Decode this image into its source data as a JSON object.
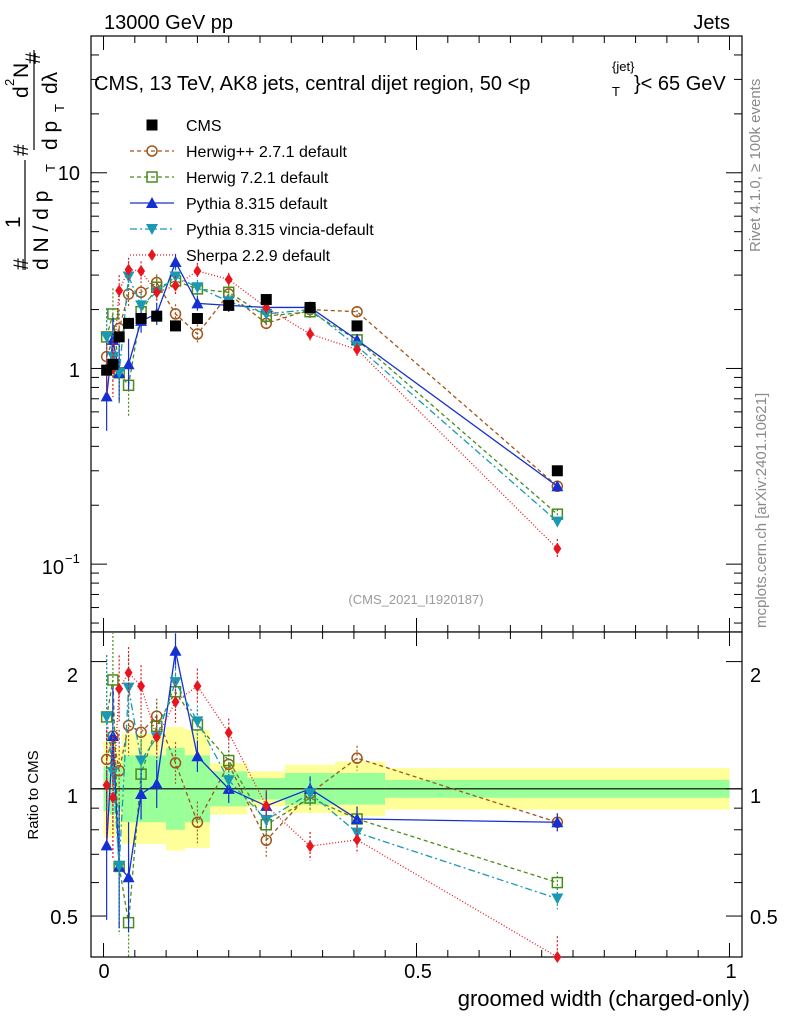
{
  "header": {
    "left": "13000 GeV pp",
    "right": "Jets"
  },
  "chart_data": [
    {
      "type": "scatter",
      "panel": "main",
      "title": "CMS, 13 TeV, AK8 jets, central dijet region, 50 <p",
      "title_sub": "T",
      "title_sup": "{jet}",
      "title_end": "}< 65 GeV",
      "ylabel_num": "1",
      "ylabel_den": "#",
      "ylabel_a": "d N / d p",
      "ylabel_b": "T",
      "ylabel_c": "#",
      "ylabel_d": "d",
      "ylabel_e": "2",
      "ylabel_f": "N",
      "ylabel_g": "d p",
      "ylabel_h": "T",
      "ylabel_i": "dλ",
      "ylabel_j": "#",
      "ytick_labels": [
        "10",
        "1",
        "10"
      ],
      "ytick_sup": "−1",
      "xlim": [
        -0.02,
        1.02
      ],
      "ylim": [
        0.045,
        50
      ],
      "yscale": "log",
      "watermark": "(CMS_2021_I1920187)",
      "legend": [
        {
          "label": "CMS"
        },
        {
          "label": "Herwig++ 2.7.1 default"
        },
        {
          "label": "Herwig 7.2.1 default"
        },
        {
          "label": "Pythia 8.315 default"
        },
        {
          "label": "Pythia 8.315 vincia-default"
        },
        {
          "label": "Sherpa 2.2.9 default"
        }
      ]
    },
    {
      "type": "scatter",
      "panel": "ratio",
      "ylabel": "Ratio to CMS",
      "xlabel": "groomed width (charged-only)",
      "xtick_labels": [
        "0",
        "0.5",
        "1"
      ],
      "xticks": [
        0,
        0.5,
        1
      ],
      "ytick_labels": [
        "2",
        "1",
        "0.5"
      ],
      "yticks": [
        2,
        1,
        0.5
      ],
      "xlim": [
        -0.02,
        1.02
      ],
      "ylim": [
        0.4,
        2.35
      ],
      "yscale": "log"
    }
  ],
  "series": {
    "x": [
      0.005,
      0.015,
      0.025,
      0.04,
      0.06,
      0.085,
      0.115,
      0.15,
      0.2,
      0.26,
      0.33,
      0.405,
      0.725
    ],
    "bin_edges": [
      0,
      0.01,
      0.02,
      0.03,
      0.05,
      0.07,
      0.1,
      0.13,
      0.17,
      0.23,
      0.29,
      0.37,
      0.45,
      1.0
    ],
    "cms": {
      "name": "CMS",
      "color": "#000000",
      "values": [
        0.98,
        1.05,
        1.45,
        1.7,
        1.8,
        1.85,
        1.65,
        1.8,
        2.1,
        2.25,
        2.05,
        1.65,
        0.3
      ]
    },
    "cms_band_inner": [
      0.13,
      0.15,
      0.12,
      0.2,
      0.2,
      0.2,
      0.25,
      0.2,
      0.1,
      0.06,
      0.09,
      0.09,
      0.05
    ],
    "cms_band_outer": [
      0.3,
      0.3,
      0.25,
      0.35,
      0.35,
      0.35,
      0.4,
      0.38,
      0.15,
      0.1,
      0.14,
      0.16,
      0.12
    ],
    "mc": [
      {
        "name": "Herwig++ 2.7.1 default",
        "color": "#a0561b",
        "marker": "circle",
        "dash": "4,3",
        "values": [
          1.15,
          1.4,
          1.6,
          2.4,
          2.45,
          2.75,
          1.9,
          1.5,
          2.4,
          1.7,
          2.0,
          1.95,
          0.25
        ],
        "rel_err": [
          0.3,
          0.28,
          0.25,
          0.18,
          0.14,
          0.1,
          0.12,
          0.12,
          0.08,
          0.1,
          0.08,
          0.07,
          0.05
        ]
      },
      {
        "name": "Herwig 7.2.1 default",
        "color": "#4a8c1c",
        "marker": "square",
        "dash": "4,3",
        "values": [
          1.45,
          1.9,
          0.95,
          0.82,
          1.95,
          2.6,
          2.8,
          2.55,
          2.45,
          1.85,
          1.95,
          1.4,
          0.18
        ],
        "rel_err": [
          0.4,
          0.35,
          0.45,
          0.45,
          0.2,
          0.14,
          0.1,
          0.09,
          0.08,
          0.09,
          0.08,
          0.07,
          0.06
        ]
      },
      {
        "name": "Pythia 8.315 default",
        "color": "#1530d0",
        "marker": "triangle-up",
        "dash": "",
        "values": [
          0.72,
          1.4,
          0.95,
          1.05,
          1.75,
          1.9,
          3.5,
          2.15,
          2.1,
          2.05,
          2.05,
          1.4,
          0.25
        ],
        "rel_err": [
          0.5,
          0.3,
          0.4,
          0.35,
          0.15,
          0.14,
          0.1,
          0.09,
          0.08,
          0.08,
          0.07,
          0.07,
          0.05
        ]
      },
      {
        "name": "Pythia 8.315 vincia-default",
        "color": "#1a99b5",
        "marker": "triangle-down",
        "dash": "7,3,2,3",
        "values": [
          1.45,
          1.15,
          0.95,
          2.95,
          2.1,
          2.45,
          2.95,
          2.6,
          2.2,
          1.9,
          2.0,
          1.3,
          0.165
        ],
        "rel_err": [
          0.4,
          0.35,
          0.35,
          0.2,
          0.15,
          0.12,
          0.1,
          0.09,
          0.08,
          0.08,
          0.07,
          0.07,
          0.06
        ]
      },
      {
        "name": "Sherpa 2.2.9 default",
        "color": "#e8141e",
        "marker": "diamond",
        "dash": "1,2",
        "values": [
          1.0,
          1.0,
          2.5,
          3.2,
          3.15,
          2.45,
          2.65,
          3.15,
          2.85,
          2.05,
          1.5,
          1.25,
          0.12
        ],
        "rel_err": [
          0.35,
          0.4,
          0.2,
          0.15,
          0.12,
          0.12,
          0.12,
          0.1,
          0.08,
          0.09,
          0.08,
          0.08,
          0.12
        ]
      }
    ]
  },
  "side_labels": {
    "rivet": "Rivet 4.1.0, ≥ 100k events",
    "mcplots": "mcplots.cern.ch [arXiv:2401.10621]"
  }
}
